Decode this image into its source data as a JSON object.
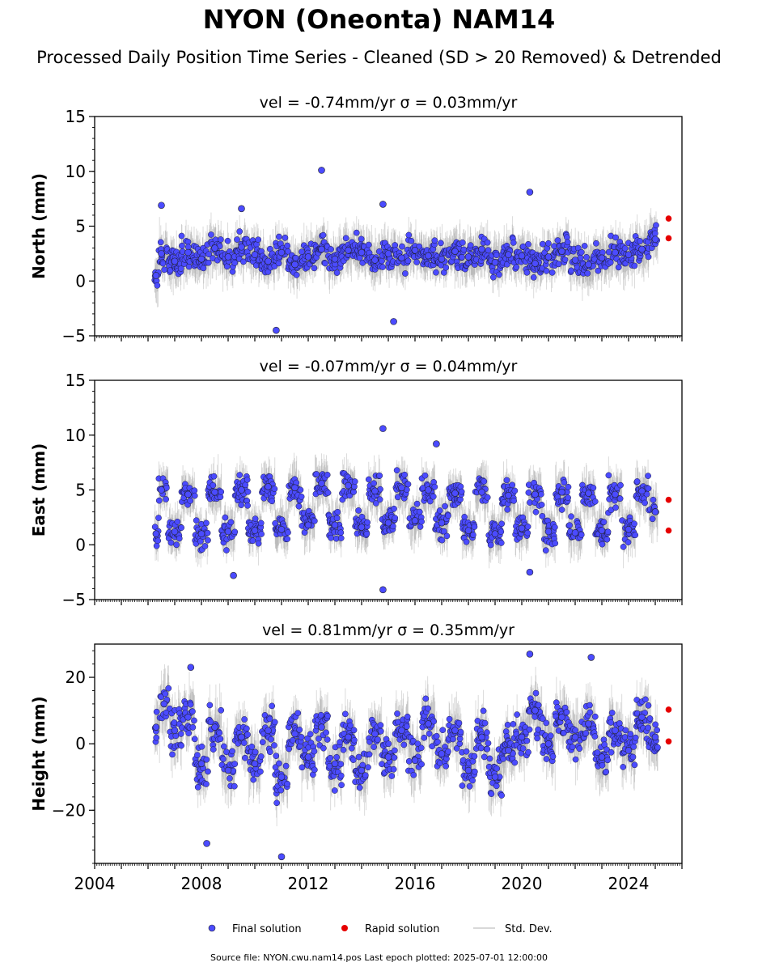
{
  "title": "NYON (Oneonta) NAM14",
  "subtitle": "Processed Daily Position Time Series - Cleaned (SD > 20 Removed) & Detrended",
  "footer": "Source file: NYON.cwu.nam14.pos  Last epoch plotted: 2025-07-01 12:00:00",
  "legend": {
    "final": "Final solution",
    "rapid": "Rapid solution",
    "std": "Std. Dev."
  },
  "colors": {
    "final": "#4b4bff",
    "rapid": "#e60000",
    "std": "#999999"
  },
  "chart_data": [
    {
      "type": "scatter",
      "panel": "north",
      "title": "vel = -0.74mm/yr   σ = 0.03mm/yr",
      "ylabel": "North (mm)",
      "xlim": [
        2004,
        2026
      ],
      "ylim": [
        -5,
        15
      ],
      "x_ticks": [
        2004,
        2008,
        2012,
        2016,
        2020,
        2024
      ],
      "y_ticks": [
        -5,
        0,
        5,
        10,
        15
      ],
      "series": [
        {
          "name": "Final solution",
          "x": [
            2006.3,
            2006.5,
            2007.0,
            2007.5,
            2008.0,
            2008.5,
            2009.0,
            2009.5,
            2010.0,
            2010.5,
            2011.0,
            2011.5,
            2012.0,
            2012.5,
            2013.0,
            2013.5,
            2014.0,
            2014.5,
            2015.0,
            2015.5,
            2016.0,
            2016.5,
            2017.0,
            2017.5,
            2018.0,
            2018.5,
            2019.0,
            2019.5,
            2020.0,
            2020.5,
            2021.0,
            2021.5,
            2022.0,
            2022.5,
            2023.0,
            2023.5,
            2024.0,
            2024.5,
            2025.0,
            2006.5,
            2009.5,
            2012.5,
            2014.8,
            2015.2,
            2010.8,
            2020.3
          ],
          "y": [
            0.5,
            2.5,
            1.8,
            2.6,
            2.0,
            3.0,
            2.2,
            3.1,
            2.4,
            1.8,
            2.6,
            1.5,
            2.2,
            2.9,
            2.0,
            2.8,
            2.6,
            1.9,
            2.5,
            2.1,
            2.8,
            2.3,
            2.0,
            2.7,
            2.2,
            2.9,
            1.7,
            2.4,
            2.3,
            1.6,
            2.2,
            2.7,
            1.9,
            1.5,
            2.1,
            2.6,
            2.4,
            2.9,
            3.8,
            6.9,
            6.6,
            10.1,
            7.0,
            -3.7,
            -4.5,
            8.1
          ]
        },
        {
          "name": "Rapid solution",
          "x": [
            2025.5,
            2025.5
          ],
          "y": [
            5.7,
            3.9
          ]
        }
      ]
    },
    {
      "type": "scatter",
      "panel": "east",
      "title": "vel = -0.07mm/yr   σ = 0.04mm/yr",
      "ylabel": "East (mm)",
      "xlim": [
        2004,
        2026
      ],
      "ylim": [
        -5,
        15
      ],
      "x_ticks": [
        2004,
        2008,
        2012,
        2016,
        2020,
        2024
      ],
      "y_ticks": [
        -5,
        0,
        5,
        10,
        15
      ],
      "series": [
        {
          "name": "Final solution",
          "x": [
            2006.3,
            2006.5,
            2007.0,
            2007.5,
            2008.0,
            2008.5,
            2009.0,
            2009.5,
            2010.0,
            2010.5,
            2011.0,
            2011.5,
            2012.0,
            2012.5,
            2013.0,
            2013.5,
            2014.0,
            2014.5,
            2015.0,
            2015.5,
            2016.0,
            2016.5,
            2017.0,
            2017.5,
            2018.0,
            2018.5,
            2019.0,
            2019.5,
            2020.0,
            2020.5,
            2021.0,
            2021.5,
            2022.0,
            2022.5,
            2023.0,
            2023.5,
            2024.0,
            2024.5,
            2025.0,
            2014.8,
            2014.8,
            2009.2,
            2016.8,
            2020.3
          ],
          "y": [
            1.0,
            5.0,
            1.2,
            4.6,
            1.0,
            4.8,
            1.2,
            5.0,
            1.3,
            5.3,
            1.4,
            5.2,
            1.8,
            5.6,
            1.8,
            5.4,
            1.6,
            4.9,
            2.0,
            5.2,
            2.2,
            5.0,
            2.0,
            4.7,
            1.3,
            4.8,
            1.0,
            4.5,
            1.5,
            4.6,
            1.2,
            4.8,
            1.1,
            4.7,
            1.3,
            4.6,
            1.4,
            4.9,
            3.0,
            10.6,
            -4.1,
            -2.8,
            9.2,
            -2.5
          ]
        },
        {
          "name": "Rapid solution",
          "x": [
            2025.5,
            2025.5
          ],
          "y": [
            4.1,
            1.3
          ]
        }
      ]
    },
    {
      "type": "scatter",
      "panel": "height",
      "title": "vel = 0.81mm/yr   σ = 0.35mm/yr",
      "ylabel": "Height (mm)",
      "xlim": [
        2004,
        2026
      ],
      "ylim": [
        -36,
        30
      ],
      "x_ticks": [
        2004,
        2008,
        2012,
        2016,
        2020,
        2024
      ],
      "y_ticks": [
        -20,
        0,
        20
      ],
      "series": [
        {
          "name": "Final solution",
          "x": [
            2006.3,
            2006.6,
            2007.0,
            2007.5,
            2008.0,
            2008.5,
            2009.0,
            2009.5,
            2010.0,
            2010.5,
            2011.0,
            2011.5,
            2012.0,
            2012.5,
            2013.0,
            2013.5,
            2014.0,
            2014.5,
            2015.0,
            2015.5,
            2016.0,
            2016.5,
            2017.0,
            2017.5,
            2018.0,
            2018.5,
            2019.0,
            2019.5,
            2020.0,
            2020.5,
            2021.0,
            2021.5,
            2022.0,
            2022.5,
            2023.0,
            2023.5,
            2024.0,
            2024.5,
            2025.0,
            2007.6,
            2008.2,
            2011.0,
            2020.3,
            2022.6
          ],
          "y": [
            5.0,
            12.0,
            4.0,
            8.0,
            -6.0,
            5.0,
            -8.0,
            2.0,
            -6.0,
            4.0,
            -10.0,
            3.0,
            -4.0,
            5.0,
            -6.0,
            2.0,
            -8.0,
            3.0,
            -4.0,
            4.0,
            -5.0,
            6.0,
            -3.0,
            4.0,
            -8.0,
            2.0,
            -10.0,
            -2.0,
            2.0,
            10.0,
            0.0,
            8.0,
            2.0,
            6.0,
            -4.0,
            4.0,
            -2.0,
            8.0,
            2.0,
            23.0,
            -30.0,
            -34.0,
            27.0,
            26.0
          ]
        },
        {
          "name": "Rapid solution",
          "x": [
            2025.5,
            2025.5
          ],
          "y": [
            10.3,
            0.7
          ]
        }
      ]
    }
  ]
}
